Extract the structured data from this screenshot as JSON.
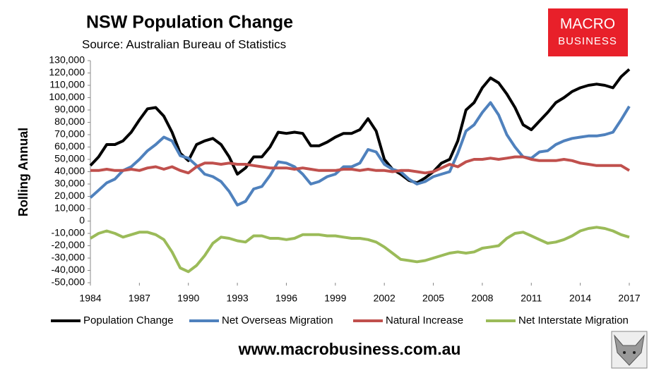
{
  "chart_data": {
    "type": "line",
    "title": "NSW Population Change",
    "subtitle": "Source: Australian Bureau of Statistics",
    "y_label": "Rolling Annual",
    "xlim": [
      1984,
      2017
    ],
    "xticks": [
      1984,
      1987,
      1990,
      1993,
      1996,
      1999,
      2002,
      2005,
      2008,
      2011,
      2014,
      2017
    ],
    "ylim": [
      -50000,
      130000
    ],
    "yticks": [
      {
        "value": -50000,
        "label": "-50,000"
      },
      {
        "value": -40000,
        "label": "-40,000"
      },
      {
        "value": -30000,
        "label": "-30,000"
      },
      {
        "value": -20000,
        "label": "-20,000"
      },
      {
        "value": -10000,
        "label": "-10,000"
      },
      0,
      {
        "value": 10000,
        "label": "10,000"
      },
      {
        "value": 20000,
        "label": "20,000"
      },
      {
        "value": 30000,
        "label": "30,000"
      },
      {
        "value": 40000,
        "label": "40,000"
      },
      {
        "value": 50000,
        "label": "50,000"
      },
      {
        "value": 60000,
        "label": "60,000"
      },
      {
        "value": 70000,
        "label": "70,000"
      },
      {
        "value": 80000,
        "label": "80,000"
      },
      {
        "value": 90000,
        "label": "90,000"
      },
      {
        "value": 100000,
        "label": "100,000"
      },
      {
        "value": 110000,
        "label": "110,000"
      },
      {
        "value": 120000,
        "label": "120,000"
      },
      {
        "value": 130000,
        "label": "130,000"
      }
    ],
    "grid": false,
    "x": [
      1984,
      1984.5,
      1985,
      1985.5,
      1986,
      1986.5,
      1987,
      1987.5,
      1988,
      1988.5,
      1989,
      1989.5,
      1990,
      1990.5,
      1991,
      1991.5,
      1992,
      1992.5,
      1993,
      1993.5,
      1994,
      1994.5,
      1995,
      1995.5,
      1996,
      1996.5,
      1997,
      1997.5,
      1998,
      1998.5,
      1999,
      1999.5,
      2000,
      2000.5,
      2001,
      2001.5,
      2002,
      2002.5,
      2003,
      2003.5,
      2004,
      2004.5,
      2005,
      2005.5,
      2006,
      2006.5,
      2007,
      2007.5,
      2008,
      2008.5,
      2009,
      2009.5,
      2010,
      2010.5,
      2011,
      2011.5,
      2012,
      2012.5,
      2013,
      2013.5,
      2014,
      2014.5,
      2015,
      2015.5,
      2016,
      2016.5,
      2017
    ],
    "series": [
      {
        "name": "Population Change",
        "color": "#000000",
        "values": [
          45000,
          52000,
          62000,
          62000,
          65000,
          72000,
          82000,
          91000,
          92000,
          85000,
          72000,
          55000,
          49000,
          62000,
          65000,
          67000,
          62000,
          52000,
          38000,
          43000,
          52000,
          52000,
          60000,
          72000,
          71000,
          72000,
          71000,
          61000,
          61000,
          64000,
          68000,
          71000,
          71000,
          74000,
          83000,
          73000,
          50000,
          42000,
          38000,
          33000,
          31000,
          35000,
          40000,
          47000,
          50000,
          65000,
          90000,
          96000,
          108000,
          116000,
          112000,
          103000,
          92000,
          78000,
          74000,
          81000,
          88000,
          96000,
          100000,
          105000,
          108000,
          110000,
          111000,
          110000,
          108000,
          117000,
          123000
        ]
      },
      {
        "name": "Net Overseas Migration",
        "color": "#4f81bd",
        "values": [
          19000,
          25000,
          31000,
          34000,
          41000,
          44000,
          50000,
          57000,
          62000,
          68000,
          65000,
          53000,
          51000,
          45000,
          38000,
          36000,
          32000,
          24000,
          13000,
          16000,
          26000,
          28000,
          37000,
          48000,
          47000,
          44000,
          38000,
          30000,
          32000,
          36000,
          38000,
          44000,
          44000,
          47000,
          58000,
          56000,
          46000,
          42000,
          40000,
          34000,
          30000,
          32000,
          36000,
          38000,
          40000,
          55000,
          73000,
          78000,
          88000,
          96000,
          86000,
          70000,
          60000,
          52000,
          51000,
          56000,
          57000,
          62000,
          65000,
          67000,
          68000,
          69000,
          69000,
          70000,
          72000,
          82000,
          93000
        ]
      },
      {
        "name": "Natural Increase",
        "color": "#c0504d",
        "values": [
          41000,
          41000,
          42000,
          41000,
          41000,
          42000,
          41000,
          43000,
          44000,
          42000,
          44000,
          41000,
          39000,
          44000,
          47000,
          47000,
          46000,
          47000,
          46000,
          46000,
          45000,
          44000,
          43000,
          43000,
          43000,
          42000,
          43000,
          42000,
          41000,
          41000,
          41000,
          42000,
          42000,
          41000,
          42000,
          41000,
          41000,
          40000,
          41000,
          41000,
          40000,
          39000,
          40000,
          43000,
          46000,
          44000,
          48000,
          50000,
          50000,
          51000,
          50000,
          51000,
          52000,
          52000,
          50000,
          49000,
          49000,
          49000,
          50000,
          49000,
          47000,
          46000,
          45000,
          45000,
          45000,
          45000,
          41000
        ]
      },
      {
        "name": "Net Interstate Migration",
        "color": "#9bbb59",
        "values": [
          -14000,
          -10000,
          -8000,
          -10000,
          -13000,
          -11000,
          -9000,
          -9000,
          -11000,
          -15000,
          -25000,
          -38000,
          -41000,
          -36000,
          -28000,
          -18000,
          -13000,
          -14000,
          -16000,
          -17000,
          -12000,
          -12000,
          -14000,
          -14000,
          -15000,
          -14000,
          -11000,
          -11000,
          -11000,
          -12000,
          -12000,
          -13000,
          -14000,
          -14000,
          -15000,
          -17000,
          -21000,
          -26000,
          -31000,
          -32000,
          -33000,
          -32000,
          -30000,
          -28000,
          -26000,
          -25000,
          -26000,
          -25000,
          -22000,
          -21000,
          -20000,
          -14000,
          -10000,
          -9000,
          -12000,
          -15000,
          -18000,
          -17000,
          -15000,
          -12000,
          -8000,
          -6000,
          -5000,
          -6000,
          -8000,
          -11000,
          -13000
        ]
      }
    ]
  },
  "logo": {
    "line1": "MACRO",
    "line2": "BUSINESS"
  },
  "footer_url": "www.macrobusiness.com.au"
}
